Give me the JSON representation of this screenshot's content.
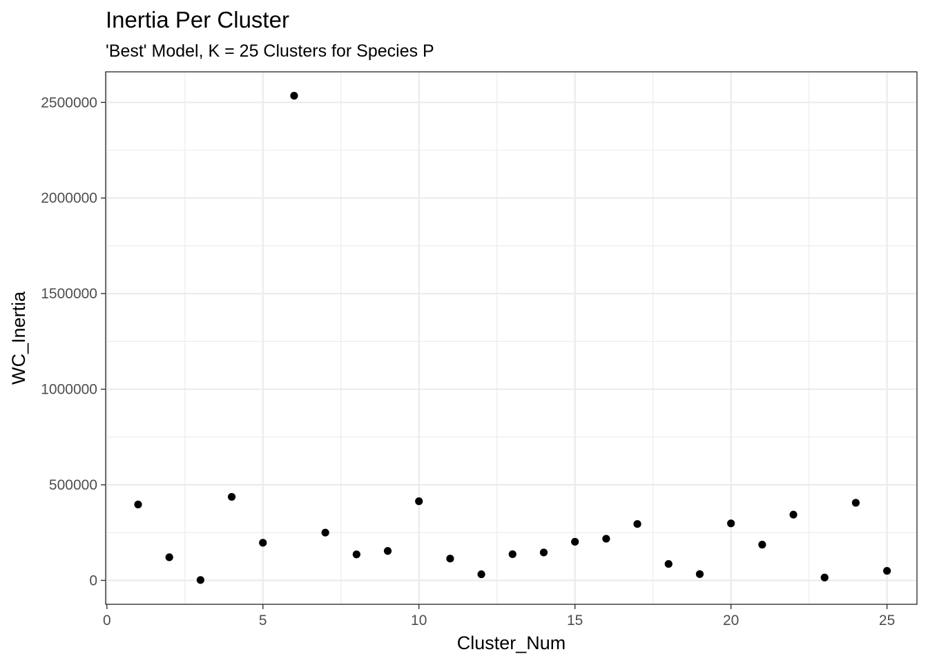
{
  "chart_data": {
    "type": "scatter",
    "title": "Inertia Per Cluster",
    "subtitle": "'Best' Model, K = 25 Clusters for Species P",
    "xlabel": "Cluster_Num",
    "ylabel": "WC_Inertia",
    "xlim": [
      -0.04,
      25.96
    ],
    "ylim": [
      -125000,
      2660000
    ],
    "x_ticks": [
      0,
      5,
      10,
      15,
      20,
      25
    ],
    "y_ticks": [
      0,
      500000,
      1000000,
      1500000,
      2000000,
      2500000
    ],
    "x_tick_labels": [
      "0",
      "5",
      "10",
      "15",
      "20",
      "25"
    ],
    "y_tick_labels": [
      "0",
      "500000",
      "1000000",
      "1500000",
      "2000000",
      "2500000"
    ],
    "grid": true,
    "point_color": "#000000",
    "series": [
      {
        "x": [
          1,
          2,
          3,
          4,
          5,
          6,
          7,
          8,
          9,
          10,
          11,
          12,
          13,
          14,
          15,
          16,
          17,
          18,
          19,
          20,
          21,
          22,
          23,
          24,
          25
        ],
        "y": [
          397000,
          121000,
          2000,
          437000,
          197000,
          2535000,
          250000,
          136000,
          154000,
          414000,
          114000,
          32000,
          137000,
          146000,
          202000,
          218000,
          295000,
          86000,
          33000,
          298000,
          187000,
          344000,
          15000,
          406000,
          50000
        ]
      }
    ]
  }
}
